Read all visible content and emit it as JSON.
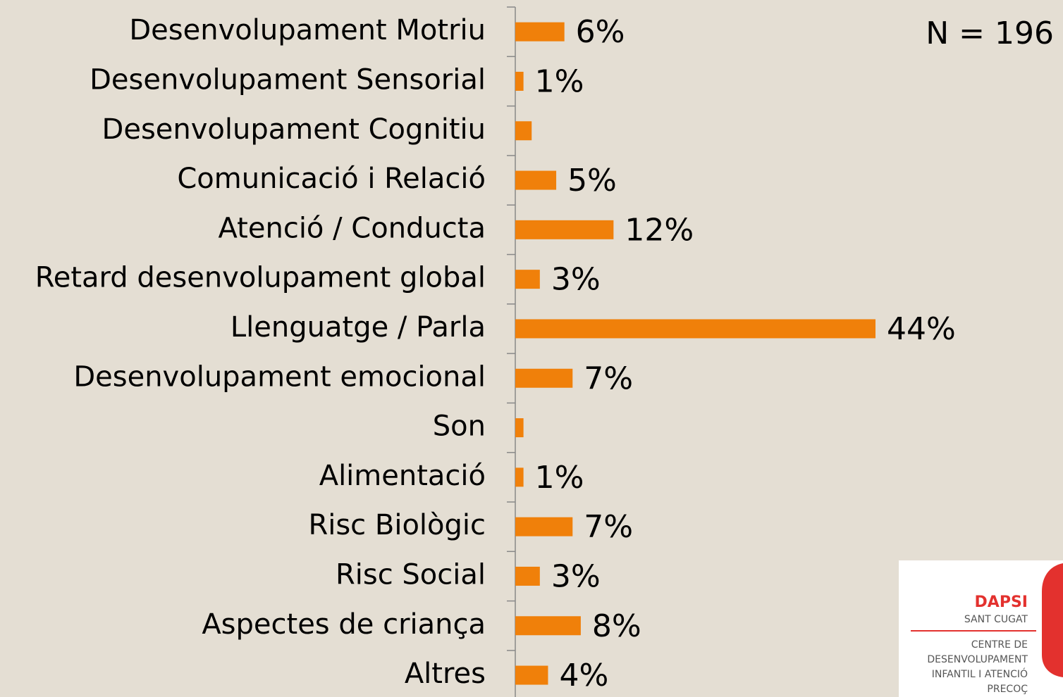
{
  "chart_data": {
    "type": "bar",
    "orientation": "horizontal",
    "categories": [
      "Desenvolupament Motriu",
      "Desenvolupament Sensorial",
      "Desenvolupament Cognitiu",
      "Comunicació i Relació",
      "Atenció / Conducta",
      "Retard desenvolupament global",
      "Llenguatge / Parla",
      "Desenvolupament emocional",
      "Son",
      "Alimentació",
      "Risc Biològic",
      "Risc Social",
      "Aspectes de criança",
      "Altres"
    ],
    "values": [
      6,
      1,
      2,
      5,
      12,
      3,
      44,
      7,
      1,
      1,
      7,
      3,
      8,
      4
    ],
    "value_labels": [
      "6%",
      "1%",
      null,
      "5%",
      "12%",
      "3%",
      "44%",
      "7%",
      null,
      "1%",
      "7%",
      "3%",
      "8%",
      "4%"
    ],
    "color": "#f0800a",
    "annotation": "N = 196"
  },
  "logo": {
    "name": "DAPSI",
    "place": "SANT CUGAT",
    "lines": [
      "CENTRE DE",
      "DESENVOLUPAMENT",
      "INFANTIL I ATENCIÓ",
      "PRECOÇ"
    ]
  }
}
